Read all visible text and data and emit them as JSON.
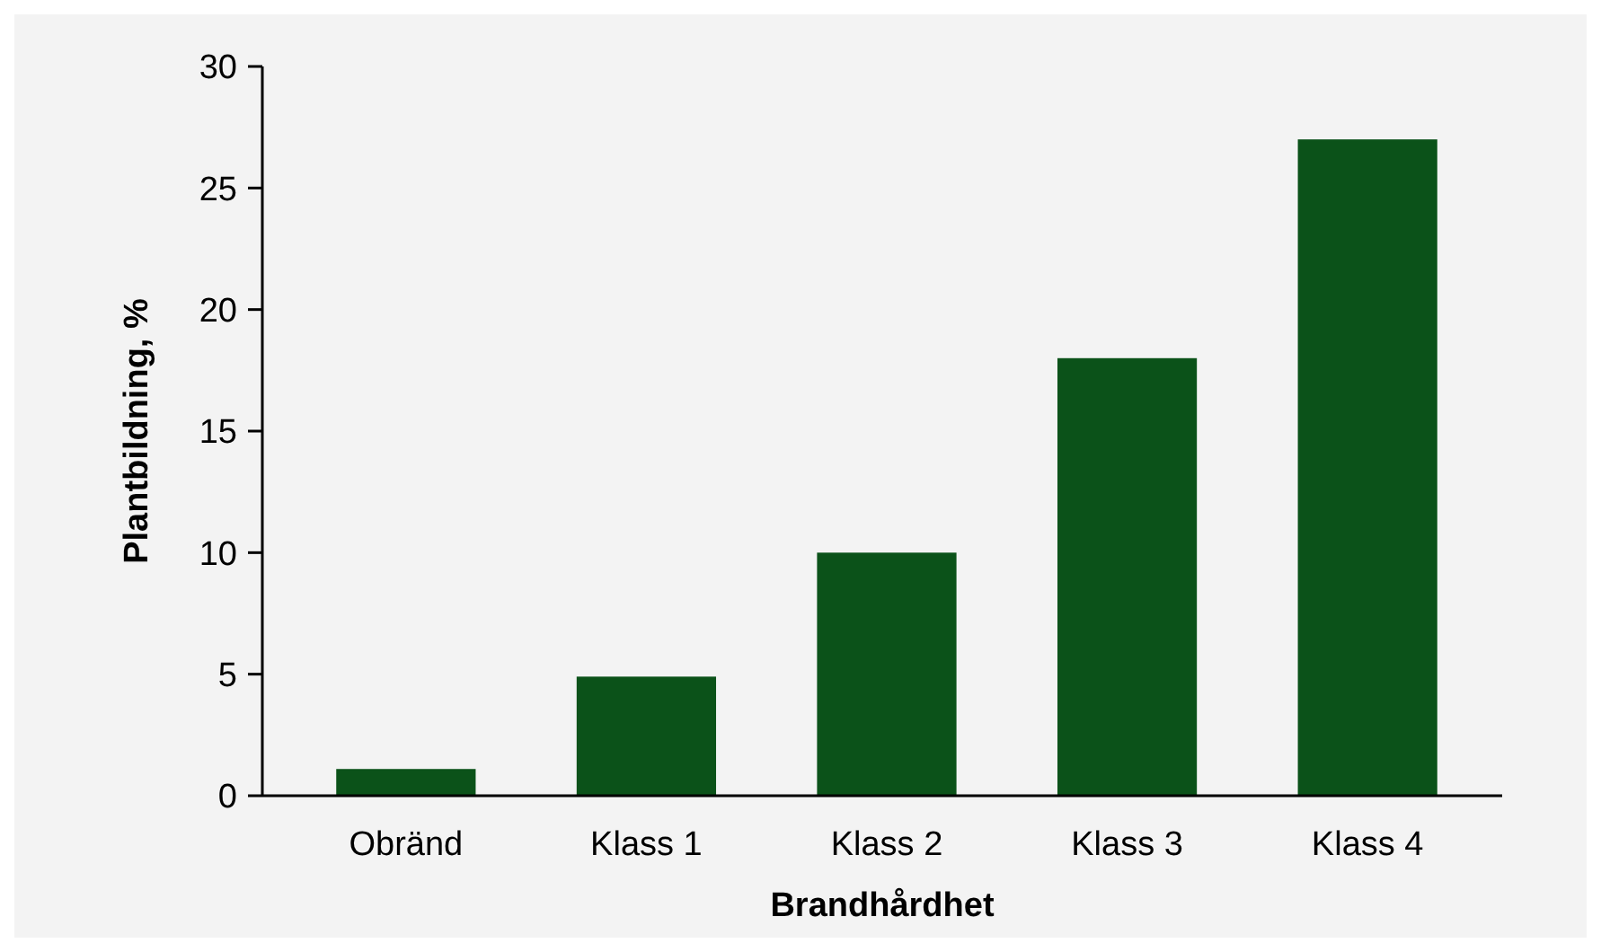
{
  "chart_data": {
    "type": "bar",
    "xlabel": "Brandhårdhet",
    "ylabel": "Plantbildning, %",
    "categories": [
      "Obränd",
      "Klass 1",
      "Klass 2",
      "Klass 3",
      "Klass 4"
    ],
    "values": [
      1.1,
      4.9,
      10,
      18,
      27
    ],
    "color": "#0b5219",
    "ylim": [
      0,
      30
    ],
    "yticks": [
      0,
      5,
      10,
      15,
      20,
      25,
      30
    ],
    "grid": false
  }
}
